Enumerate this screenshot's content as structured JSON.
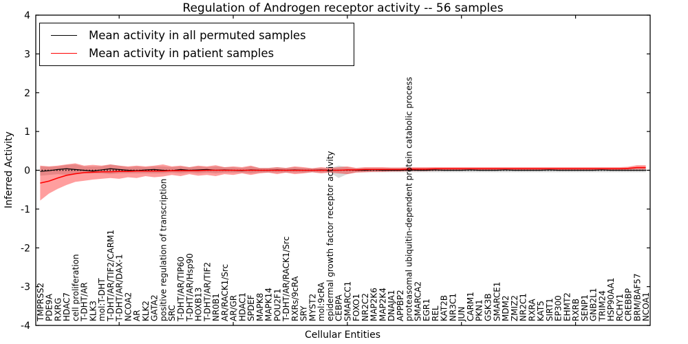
{
  "chart_data": {
    "type": "line",
    "title": "Regulation of Androgen receptor activity -- 56 samples",
    "xlabel": "Cellular Entities",
    "ylabel": "Inferred Activity",
    "ylim": [
      -4,
      4
    ],
    "yticks": [
      -4,
      -3,
      -2,
      -1,
      0,
      1,
      2,
      3,
      4
    ],
    "grid": false,
    "legend_position": "upper left",
    "zero_line_style": "dotted",
    "categories": [
      "TMPRSS2",
      "PDE9A",
      "RXRG",
      "HDAC7",
      "cell proliferation",
      "T-DHT/AR",
      "KLK3",
      "mol:T-DHT",
      "T-DHT/AR/TIF2/CARM1",
      "T-DHT/AR/DAX-1",
      "NCOA2",
      "AR",
      "KLK2",
      "GATA2",
      "positive regulation of transcription",
      "SRC",
      "T-DHT/AR/TIP60",
      "T-DHT/AR/Hsp90",
      "HOXB13",
      "T-DHT/AR/TIF2",
      "NR0B1",
      "AR/RACK1/Src",
      "AR/GR",
      "HDAC1",
      "SPDEF",
      "MAPK8",
      "MAPK14",
      "POU2F1",
      "T-DHT/AR/RACK1/Src",
      "RXRs/9cRA",
      "SRY",
      "MYST2",
      "mol:9cRA",
      "epidermal growth factor receptor activity",
      "CEBPA",
      "SMARCC1",
      "FOXO1",
      "NR2C2",
      "MAP2K6",
      "MAP2K4",
      "DNAJA1",
      "APPBP2",
      "proteasomal ubiquitin-dependent protein catabolic process",
      "SMARCA2",
      "EGR1",
      "REL",
      "KAT2B",
      "NR3C1",
      "JUN",
      "CARM1",
      "PKN1",
      "GSK3B",
      "SMARCE1",
      "MDM2",
      "ZMIZ2",
      "NR2C1",
      "RXRA",
      "KAT5",
      "SIRT1",
      "EP300",
      "EHMT2",
      "RXRB",
      "SENP1",
      "GNB2L1",
      "TRIM24",
      "HSP90AA1",
      "RCHY1",
      "CREBBP",
      "BRM/BAF57",
      "NCOA1"
    ],
    "series": [
      {
        "name": "Mean activity in all permuted samples",
        "color": "#000000",
        "band_color": "#aaaaaa",
        "values": [
          -0.03,
          -0.01,
          0.02,
          0.04,
          0.02,
          0.0,
          -0.02,
          0.01,
          0.04,
          0.02,
          0.0,
          -0.01,
          0.01,
          0.02,
          0.0,
          -0.01,
          0.02,
          0.0,
          0.01,
          0.02,
          0.0,
          0.01,
          0.0,
          -0.01,
          0.01,
          0.0,
          0.0,
          0.01,
          0.0,
          0.01,
          0.0,
          0.0,
          0.01,
          0.0,
          0.0,
          0.01,
          0.0,
          0.0,
          0.01,
          0.0,
          0.0,
          0.0,
          0.01,
          0.0,
          0.0,
          0.01,
          0.0,
          0.0,
          0.0,
          0.01,
          0.0,
          0.0,
          0.0,
          0.01,
          0.0,
          0.0,
          0.0,
          0.0,
          0.01,
          0.0,
          0.0,
          0.0,
          0.0,
          0.0,
          0.01,
          0.0,
          0.0,
          0.0,
          0.0,
          0.0
        ],
        "band_lower": [
          -0.14,
          -0.12,
          -0.1,
          -0.12,
          -0.1,
          -0.08,
          -0.08,
          -0.08,
          -0.1,
          -0.08,
          -0.08,
          -0.08,
          -0.08,
          -0.08,
          -0.08,
          -0.06,
          -0.08,
          -0.06,
          -0.08,
          -0.06,
          -0.08,
          -0.06,
          -0.06,
          -0.06,
          -0.08,
          -0.06,
          -0.06,
          -0.06,
          -0.06,
          -0.06,
          -0.06,
          -0.05,
          -0.06,
          -0.05,
          -0.2,
          -0.1,
          -0.05,
          -0.05,
          -0.05,
          -0.05,
          -0.05,
          -0.05,
          -0.05,
          -0.05,
          -0.05,
          -0.05,
          -0.05,
          -0.05,
          -0.05,
          -0.05,
          -0.05,
          -0.05,
          -0.05,
          -0.05,
          -0.05,
          -0.05,
          -0.05,
          -0.05,
          -0.05,
          -0.05,
          -0.05,
          -0.05,
          -0.05,
          -0.05,
          -0.05,
          -0.05,
          -0.05,
          -0.05,
          -0.05,
          -0.05
        ],
        "band_upper": [
          0.1,
          0.09,
          0.1,
          0.14,
          0.15,
          0.1,
          0.1,
          0.1,
          0.15,
          0.12,
          0.08,
          0.1,
          0.08,
          0.1,
          0.1,
          0.08,
          0.1,
          0.08,
          0.1,
          0.08,
          0.1,
          0.08,
          0.08,
          0.06,
          0.1,
          0.06,
          0.06,
          0.08,
          0.06,
          0.08,
          0.06,
          0.05,
          0.06,
          0.05,
          0.12,
          0.08,
          0.05,
          0.06,
          0.06,
          0.06,
          0.06,
          0.06,
          0.06,
          0.06,
          0.06,
          0.06,
          0.06,
          0.06,
          0.06,
          0.06,
          0.06,
          0.06,
          0.06,
          0.06,
          0.06,
          0.06,
          0.06,
          0.06,
          0.06,
          0.06,
          0.06,
          0.06,
          0.06,
          0.06,
          0.06,
          0.06,
          0.06,
          0.06,
          0.06,
          0.06
        ]
      },
      {
        "name": "Mean activity in patient samples",
        "color": "#ff0000",
        "band_color": "#ff0000",
        "values": [
          -0.33,
          -0.28,
          -0.2,
          -0.13,
          -0.09,
          -0.06,
          -0.05,
          -0.04,
          -0.04,
          -0.03,
          -0.03,
          -0.02,
          -0.02,
          -0.02,
          -0.02,
          -0.01,
          -0.01,
          -0.01,
          -0.01,
          0.0,
          0.0,
          0.0,
          0.0,
          0.0,
          0.0,
          0.0,
          0.0,
          0.0,
          0.0,
          0.0,
          0.0,
          0.0,
          0.0,
          0.0,
          0.0,
          0.01,
          0.01,
          0.02,
          0.02,
          0.02,
          0.02,
          0.02,
          0.03,
          0.03,
          0.03,
          0.04,
          0.04,
          0.04,
          0.04,
          0.04,
          0.04,
          0.04,
          0.04,
          0.04,
          0.04,
          0.04,
          0.04,
          0.04,
          0.04,
          0.04,
          0.04,
          0.04,
          0.04,
          0.04,
          0.04,
          0.04,
          0.04,
          0.05,
          0.07,
          0.07
        ],
        "band_lower": [
          -0.78,
          -0.6,
          -0.48,
          -0.38,
          -0.3,
          -0.27,
          -0.24,
          -0.22,
          -0.2,
          -0.22,
          -0.18,
          -0.2,
          -0.15,
          -0.18,
          -0.16,
          -0.12,
          -0.15,
          -0.1,
          -0.14,
          -0.12,
          -0.15,
          -0.1,
          -0.12,
          -0.08,
          -0.12,
          -0.08,
          -0.06,
          -0.1,
          -0.06,
          -0.1,
          -0.08,
          -0.05,
          -0.08,
          -0.06,
          -0.08,
          -0.1,
          -0.06,
          -0.05,
          -0.04,
          -0.04,
          -0.03,
          -0.03,
          -0.02,
          -0.02,
          -0.02,
          -0.01,
          -0.01,
          0.0,
          0.0,
          0.0,
          0.0,
          0.0,
          0.0,
          0.0,
          0.0,
          0.0,
          0.0,
          0.0,
          0.0,
          0.0,
          0.0,
          0.0,
          0.0,
          0.0,
          0.0,
          0.0,
          0.0,
          0.01,
          0.02,
          0.02
        ],
        "band_upper": [
          0.12,
          0.1,
          0.12,
          0.15,
          0.18,
          0.12,
          0.14,
          0.12,
          0.15,
          0.12,
          0.1,
          0.12,
          0.1,
          0.12,
          0.15,
          0.1,
          0.12,
          0.08,
          0.12,
          0.1,
          0.13,
          0.08,
          0.1,
          0.08,
          0.12,
          0.06,
          0.06,
          0.08,
          0.06,
          0.1,
          0.08,
          0.05,
          0.08,
          0.06,
          0.08,
          0.1,
          0.06,
          0.08,
          0.08,
          0.08,
          0.07,
          0.07,
          0.08,
          0.08,
          0.08,
          0.08,
          0.08,
          0.08,
          0.08,
          0.08,
          0.08,
          0.08,
          0.08,
          0.08,
          0.08,
          0.08,
          0.08,
          0.08,
          0.08,
          0.08,
          0.08,
          0.08,
          0.08,
          0.08,
          0.08,
          0.08,
          0.08,
          0.09,
          0.13,
          0.13
        ]
      }
    ]
  }
}
